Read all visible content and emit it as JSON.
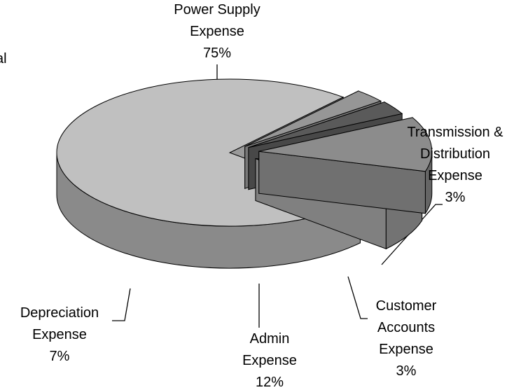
{
  "chart_data": {
    "type": "pie3d",
    "title": "al",
    "categories": [
      "Power Supply Expense",
      "Transmission & Distribution Expense",
      "Customer Accounts Expense",
      "Admin Expense",
      "Depreciation Expense"
    ],
    "values": [
      75,
      3,
      3,
      12,
      7
    ],
    "value_labels": [
      "75%",
      "3%",
      "3%",
      "12%",
      "7%"
    ],
    "colors": [
      "#c0c0c0",
      "#969696",
      "#5a5a5a",
      "#8c8c8c",
      "#a0a0a0"
    ]
  }
}
